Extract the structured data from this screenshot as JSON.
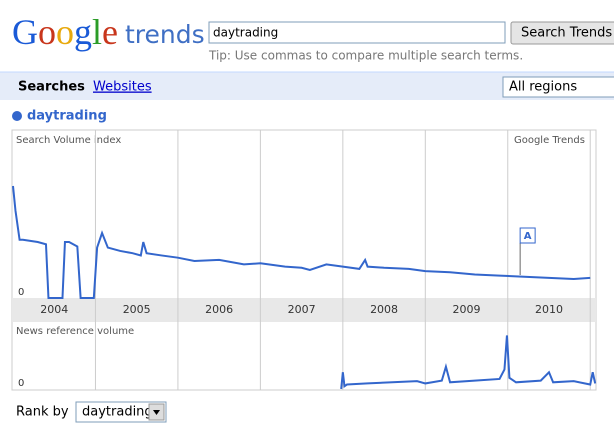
{
  "header": {
    "logo": "Google",
    "product": "trends",
    "query": "daytrading",
    "button": "Search Trends",
    "tip": "Tip: Use commas to compare multiple search terms."
  },
  "nav": {
    "tabs": [
      "Searches",
      "Websites"
    ],
    "region": "All regions"
  },
  "chart_data": [
    {
      "type": "line",
      "title": "Search Volume index",
      "source": "Google Trends",
      "xlim": [
        2004,
        2011.07
      ],
      "ylim": [
        0,
        100
      ],
      "yticks": [
        0
      ],
      "years": [
        2004,
        2005,
        2006,
        2007,
        2008,
        2009,
        2010
      ],
      "x": [
        2004.0,
        2004.03,
        2004.08,
        2004.12,
        2004.3,
        2004.4,
        2004.43,
        2004.47,
        2004.6,
        2004.63,
        2004.68,
        2004.78,
        2004.82,
        2004.87,
        2004.98,
        2005.02,
        2005.08,
        2005.15,
        2005.3,
        2005.45,
        2005.55,
        2005.58,
        2005.62,
        2005.8,
        2006.0,
        2006.2,
        2006.5,
        2006.8,
        2007.0,
        2007.3,
        2007.5,
        2007.6,
        2007.8,
        2008.0,
        2008.2,
        2008.27,
        2008.3,
        2008.5,
        2008.8,
        2009.0,
        2009.3,
        2009.6,
        2009.9,
        2010.2,
        2010.5,
        2010.8,
        2011.0
      ],
      "series": [
        {
          "name": "daytrading",
          "color": "#3366cc",
          "values": [
            100,
            78,
            52,
            52,
            50,
            48,
            0,
            0,
            0,
            50,
            50,
            46,
            0,
            0,
            0,
            45,
            58,
            45,
            42,
            40,
            38,
            50,
            40,
            38,
            36,
            33,
            34,
            30,
            31,
            28,
            27,
            25,
            30,
            28,
            26,
            34,
            28,
            27,
            26,
            24,
            23,
            21,
            20,
            19,
            18,
            17,
            18
          ]
        }
      ],
      "annotations": [
        {
          "label": "A",
          "x": 2010.15
        }
      ]
    },
    {
      "type": "line",
      "title": "News reference volume",
      "xlim": [
        2004,
        2011.07
      ],
      "ylim": [
        0,
        120
      ],
      "yticks": [
        0
      ],
      "x": [
        2007.98,
        2008.0,
        2008.02,
        2008.05,
        2008.3,
        2008.6,
        2008.9,
        2009.0,
        2009.2,
        2009.25,
        2009.3,
        2009.6,
        2009.9,
        2009.96,
        2009.99,
        2010.02,
        2010.1,
        2010.4,
        2010.5,
        2010.55,
        2010.8,
        2011.0,
        2011.03,
        2011.06
      ],
      "series": [
        {
          "color": "#3366cc",
          "values": [
            0,
            30,
            5,
            8,
            10,
            12,
            14,
            10,
            15,
            40,
            12,
            15,
            18,
            35,
            96,
            20,
            12,
            15,
            30,
            12,
            14,
            8,
            30,
            10
          ]
        }
      ]
    }
  ],
  "footer": {
    "label": "Rank by",
    "select": "daytrading"
  }
}
